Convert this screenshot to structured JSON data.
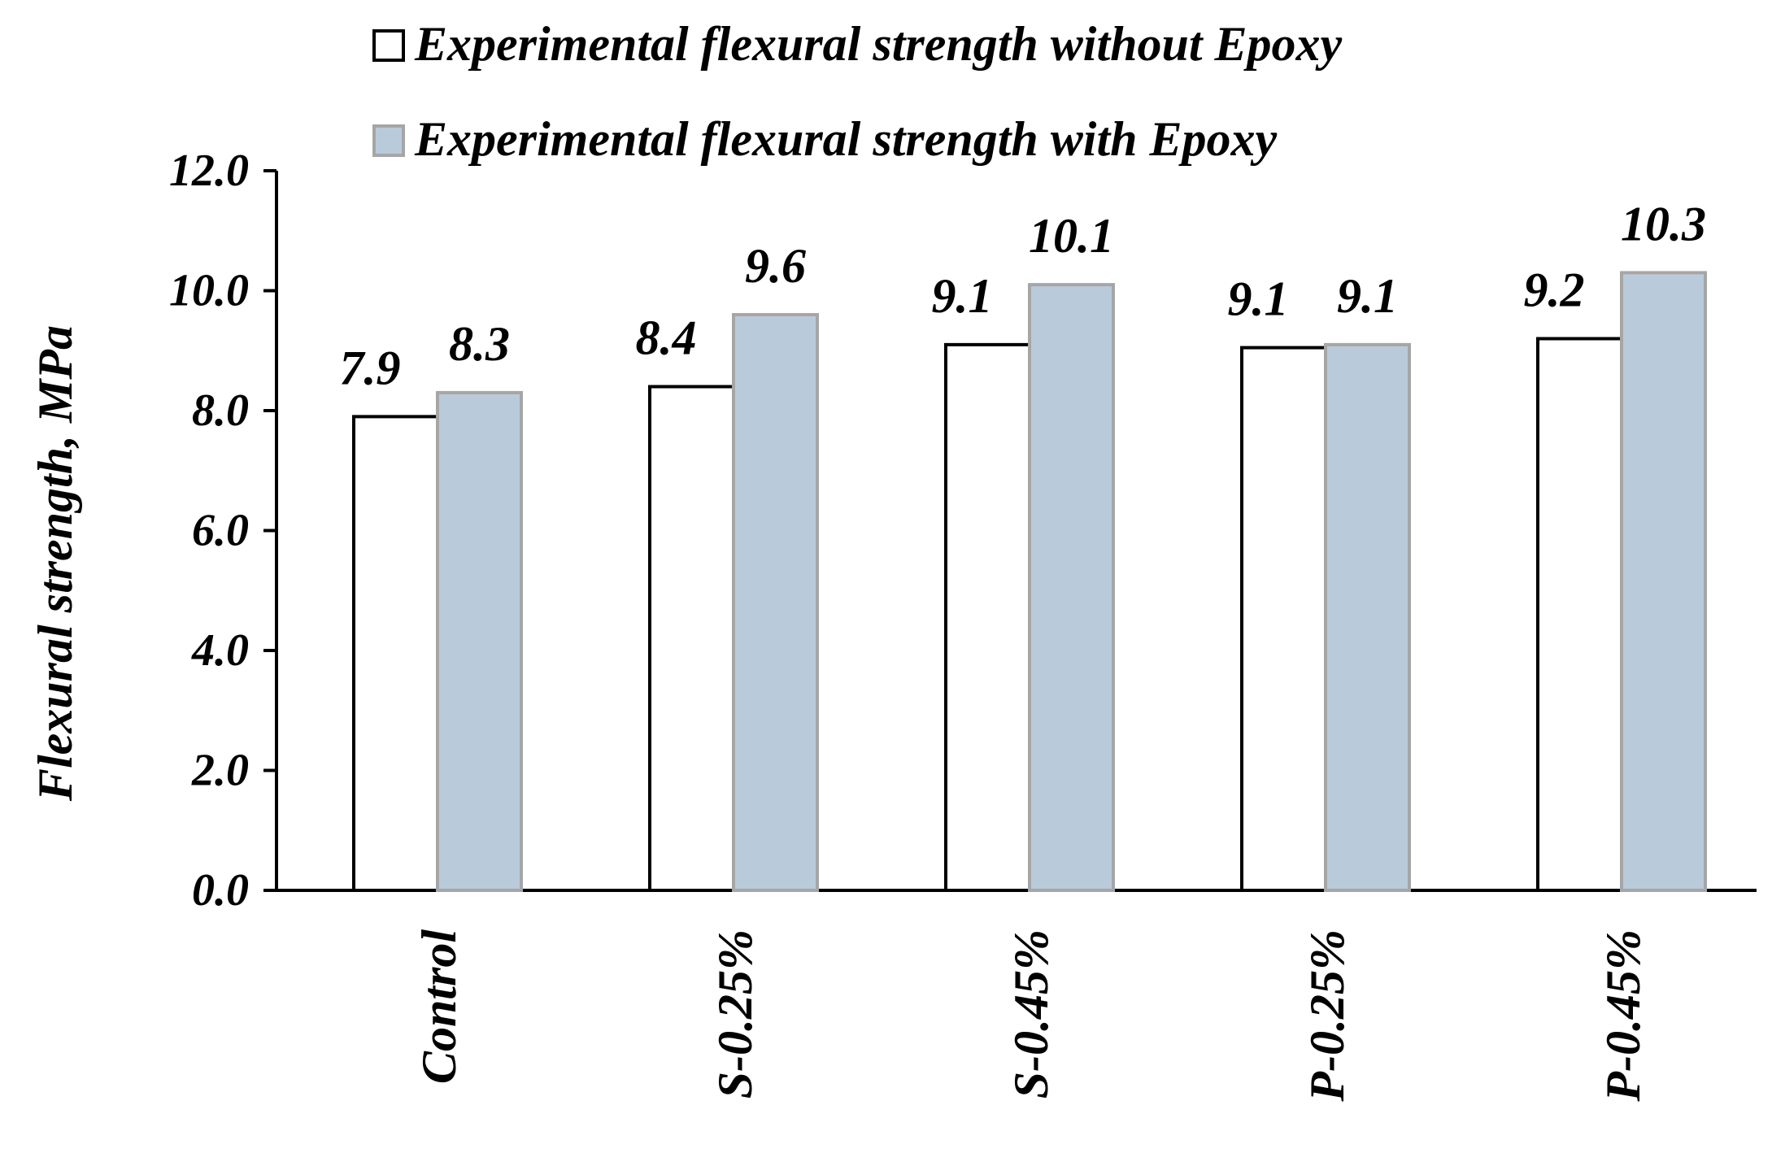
{
  "chart_data": {
    "type": "bar",
    "title": "",
    "xlabel": "",
    "ylabel": "Flexural strength, MPa",
    "categories": [
      "Control",
      "S-0.25%",
      "S-0.45%",
      "P-0.25%",
      "P-0.45%"
    ],
    "series": [
      {
        "name": "Experimental flexural strength without Epoxy",
        "values": [
          7.9,
          8.4,
          9.1,
          9.05,
          9.2
        ],
        "labels": [
          "7.9",
          "8.4",
          "9.1",
          "9.1",
          "9.2"
        ],
        "fill": "#ffffff",
        "stroke": "#000000"
      },
      {
        "name": "Experimental flexural strength with Epoxy",
        "values": [
          8.3,
          9.6,
          10.1,
          9.1,
          10.3
        ],
        "labels": [
          "8.3",
          "9.6",
          "10.1",
          "9.1",
          "10.3"
        ],
        "fill": "#b9cbdb",
        "stroke": "#a6a6a6"
      }
    ],
    "ylim": [
      0,
      12
    ],
    "yticks": [
      0,
      2,
      4,
      6,
      8,
      10,
      12
    ],
    "ytick_labels": [
      "0.0",
      "2.0",
      "4.0",
      "6.0",
      "8.0",
      "10.0",
      "12.0"
    ],
    "grid": false,
    "legend_position": "top"
  }
}
